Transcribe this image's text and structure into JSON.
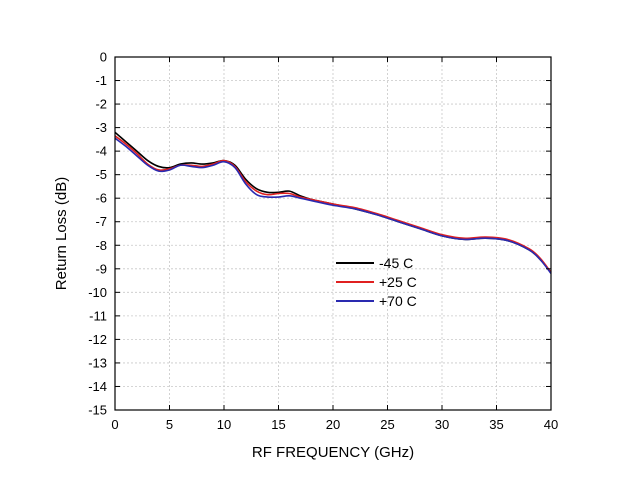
{
  "chart_data": {
    "type": "line",
    "xlabel": "RF FREQUENCY (GHz)",
    "ylabel": "Return Loss (dB)",
    "xlim": [
      0,
      40
    ],
    "ylim": [
      -15,
      0
    ],
    "xticks": [
      0,
      5,
      10,
      15,
      20,
      25,
      30,
      35,
      40
    ],
    "xtick_labels": [
      "0",
      "5",
      "10",
      "15",
      "20",
      "25",
      "30",
      "35",
      "40"
    ],
    "yticks": [
      0,
      -1,
      -2,
      -3,
      -4,
      -5,
      -6,
      -7,
      -8,
      -9,
      -10,
      -11,
      -12,
      -13,
      -14,
      -15
    ],
    "ytick_labels": [
      "0",
      "-1",
      "-2",
      "-3",
      "-4",
      "-5",
      "-6",
      "-7",
      "-8",
      "-9",
      "-10",
      "-11",
      "-12",
      "-13",
      "-14",
      "-15"
    ],
    "grid": true,
    "legend_position": "center-right",
    "series": [
      {
        "name": "-45 C",
        "color": "#000000",
        "x": [
          0,
          1,
          2,
          3,
          4,
          5,
          6,
          7,
          8,
          9,
          10,
          11,
          12,
          13,
          14,
          15,
          16,
          17,
          18,
          20,
          22,
          24,
          26,
          28,
          30,
          32,
          34,
          36,
          38,
          39,
          40
        ],
        "y": [
          -3.2,
          -3.6,
          -4.0,
          -4.4,
          -4.65,
          -4.7,
          -4.55,
          -4.5,
          -4.55,
          -4.5,
          -4.4,
          -4.6,
          -5.2,
          -5.6,
          -5.75,
          -5.75,
          -5.7,
          -5.9,
          -6.05,
          -6.25,
          -6.45,
          -6.7,
          -7.0,
          -7.3,
          -7.6,
          -7.75,
          -7.7,
          -7.8,
          -8.2,
          -8.6,
          -9.15
        ]
      },
      {
        "name": "+25 C",
        "color": "#e02020",
        "x": [
          0,
          1,
          2,
          3,
          4,
          5,
          6,
          7,
          8,
          9,
          10,
          11,
          12,
          13,
          14,
          15,
          16,
          17,
          18,
          20,
          22,
          24,
          26,
          28,
          30,
          32,
          34,
          36,
          38,
          39,
          40
        ],
        "y": [
          -3.35,
          -3.7,
          -4.1,
          -4.55,
          -4.8,
          -4.75,
          -4.6,
          -4.6,
          -4.65,
          -4.55,
          -4.4,
          -4.65,
          -5.3,
          -5.7,
          -5.85,
          -5.8,
          -5.8,
          -5.95,
          -6.05,
          -6.25,
          -6.4,
          -6.65,
          -6.95,
          -7.25,
          -7.55,
          -7.7,
          -7.65,
          -7.75,
          -8.15,
          -8.55,
          -9.15
        ]
      },
      {
        "name": "+70 C",
        "color": "#2a2ab0",
        "x": [
          0,
          1,
          2,
          3,
          4,
          5,
          6,
          7,
          8,
          9,
          10,
          11,
          12,
          13,
          14,
          15,
          16,
          17,
          18,
          20,
          22,
          24,
          26,
          28,
          30,
          32,
          34,
          36,
          38,
          39,
          40
        ],
        "y": [
          -3.45,
          -3.8,
          -4.2,
          -4.6,
          -4.85,
          -4.8,
          -4.6,
          -4.65,
          -4.7,
          -4.6,
          -4.45,
          -4.7,
          -5.4,
          -5.85,
          -5.95,
          -5.95,
          -5.9,
          -6.0,
          -6.1,
          -6.3,
          -6.45,
          -6.7,
          -7.0,
          -7.3,
          -7.6,
          -7.75,
          -7.7,
          -7.8,
          -8.2,
          -8.6,
          -9.2
        ]
      }
    ]
  }
}
